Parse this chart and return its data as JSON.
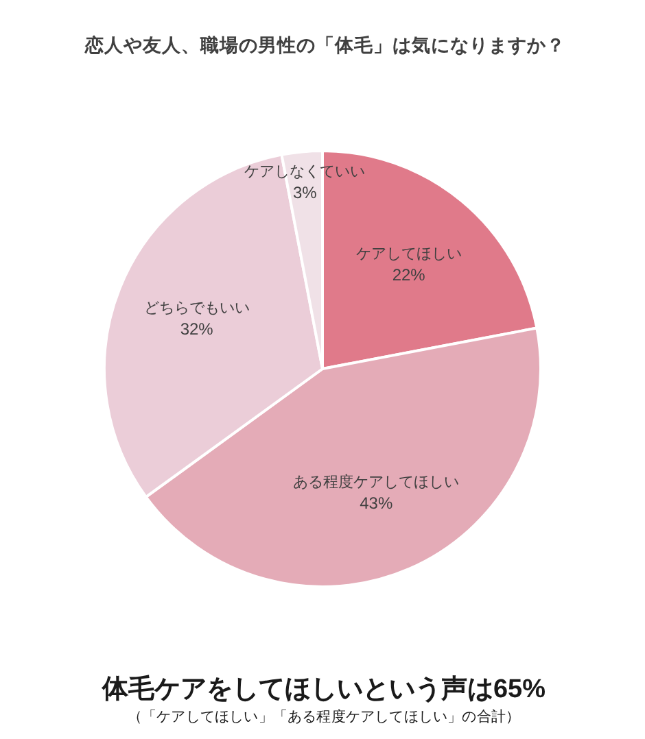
{
  "chart_data": {
    "type": "pie",
    "title": "恋人や友人、職場の男性の「体毛」は気になりますか？",
    "categories": [
      "ケアしてほしい",
      "ある程度ケアしてほしい",
      "どちらでもいい",
      "ケアしなくていい"
    ],
    "values": [
      22,
      43,
      32,
      3
    ],
    "colors": [
      "#e07a8a",
      "#e4abb7",
      "#ebcdd8",
      "#f0e1e7"
    ],
    "value_labels": [
      "22%",
      "43%",
      "32%",
      "3%"
    ],
    "annotations": [
      "体毛ケアをしてほしいという声は65%",
      "（「ケアしてほしい」「ある程度ケアしてほしい」の合計）"
    ]
  }
}
